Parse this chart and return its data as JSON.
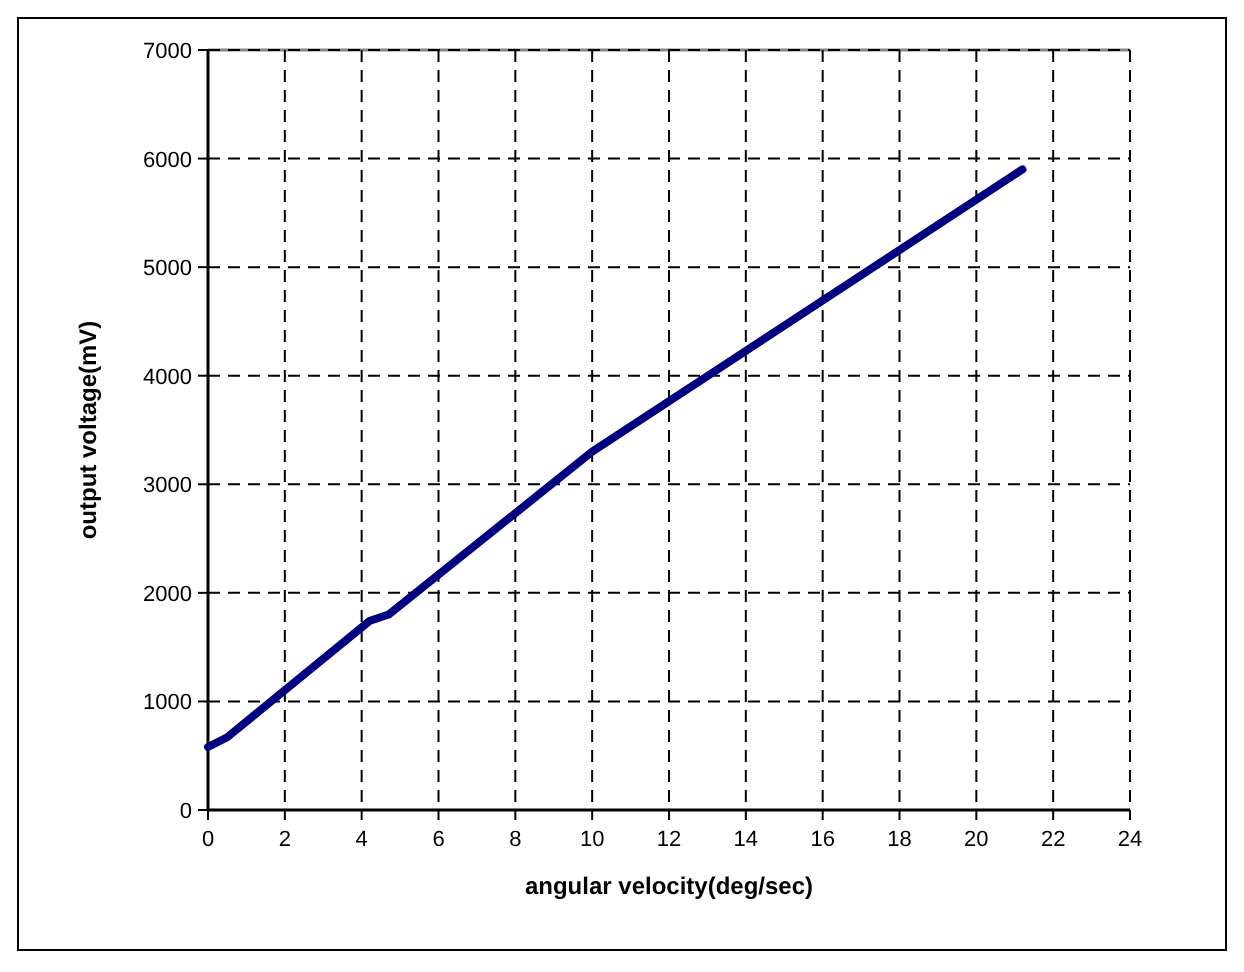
{
  "chart_data": {
    "type": "line",
    "xlabel": "angular velocity(deg/sec)",
    "ylabel": "output voltage(mV)",
    "series": [
      {
        "color": "#000080",
        "x": [
          0,
          0.5,
          4.2,
          4.7,
          10,
          21.2
        ],
        "values": [
          580,
          670,
          1740,
          1800,
          3300,
          5900
        ]
      }
    ],
    "xlim": [
      0,
      24
    ],
    "xticks": [
      0,
      2,
      4,
      6,
      8,
      10,
      12,
      14,
      16,
      18,
      20,
      22,
      24
    ],
    "ylim": [
      0,
      7000
    ],
    "yticks": [
      0,
      1000,
      2000,
      3000,
      4000,
      5000,
      6000,
      7000
    ],
    "grid": true,
    "marker": "none",
    "line_style": "solid"
  }
}
